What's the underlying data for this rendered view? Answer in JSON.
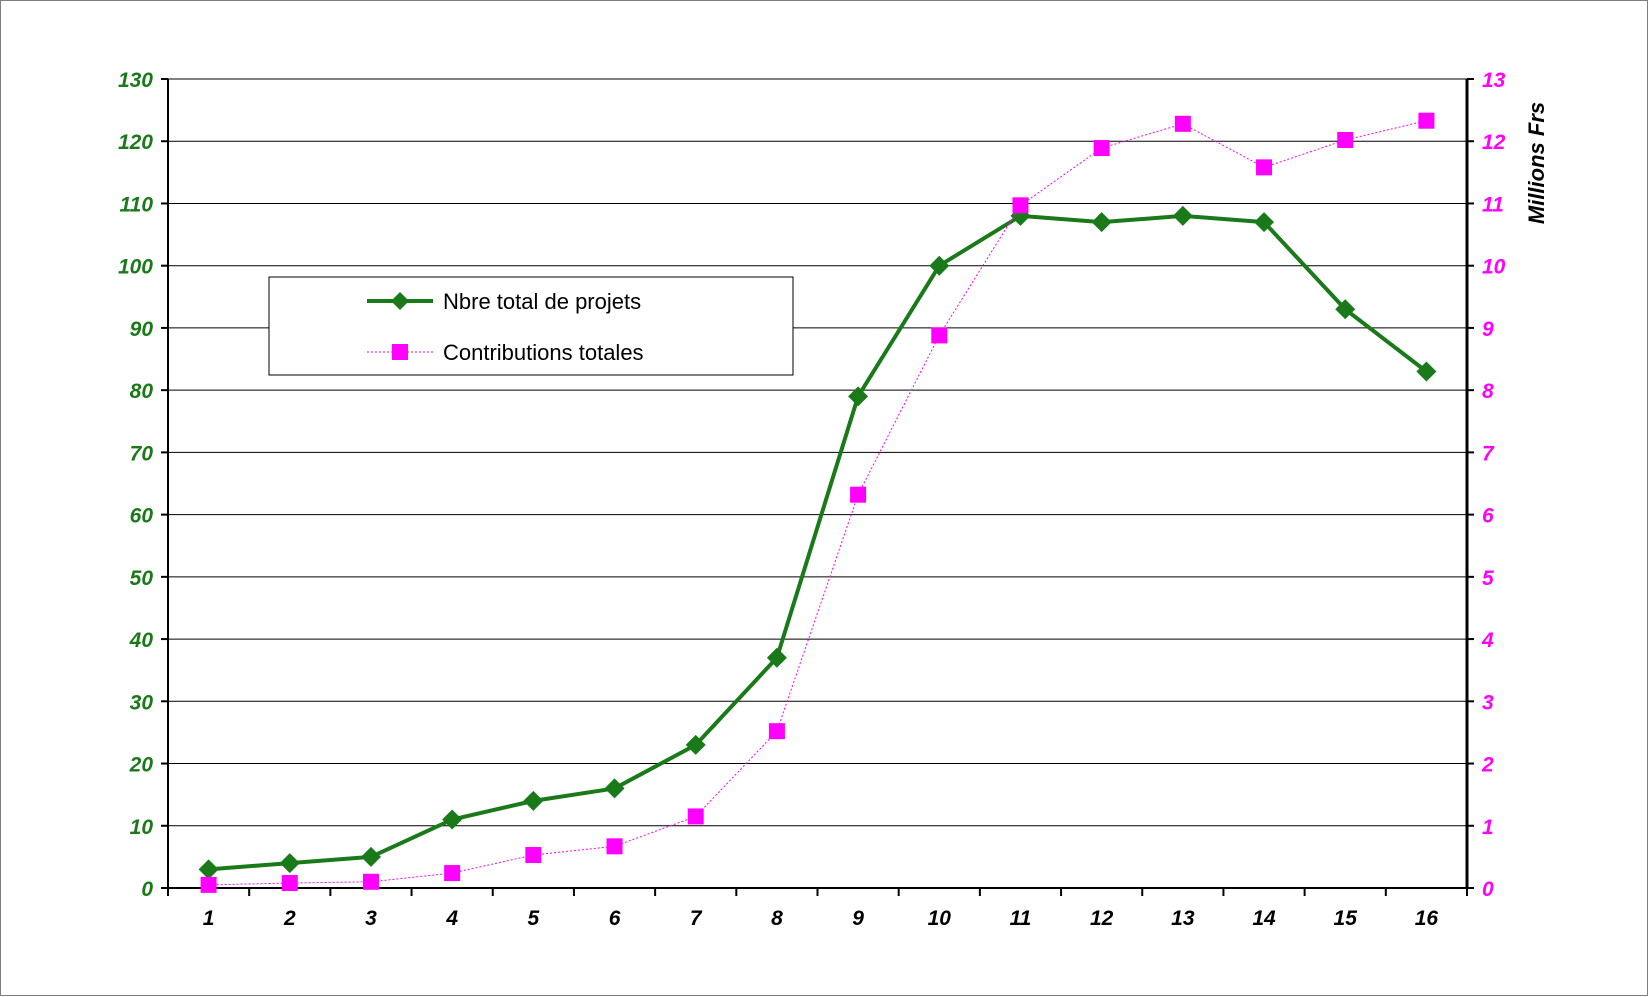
{
  "chart_data": {
    "type": "line",
    "title": "",
    "categories": [
      "1",
      "2",
      "3",
      "4",
      "5",
      "6",
      "7",
      "8",
      "9",
      "10",
      "11",
      "12",
      "13",
      "14",
      "15",
      "16"
    ],
    "series": [
      {
        "name": "Nbre total de projets",
        "axis": "left",
        "color": "#1a7a1a",
        "marker": "diamond",
        "values": [
          3,
          4,
          5,
          11,
          14,
          16,
          23,
          37,
          79,
          100,
          108,
          107,
          108,
          107,
          93,
          83
        ]
      },
      {
        "name": "Contributions totales",
        "axis": "right",
        "color": "#ff00ff",
        "marker": "square",
        "values": [
          0.05,
          0.08,
          0.1,
          0.24,
          0.53,
          0.67,
          1.15,
          2.52,
          6.32,
          8.88,
          10.97,
          11.89,
          12.28,
          11.58,
          12.02,
          12.33
        ]
      }
    ],
    "y_left": {
      "min": 0,
      "max": 130,
      "step": 10,
      "ticks": [
        "0",
        "10",
        "20",
        "30",
        "40",
        "50",
        "60",
        "70",
        "80",
        "90",
        "100",
        "110",
        "120",
        "130"
      ],
      "color": "#1a7a1a",
      "label": ""
    },
    "y_right": {
      "min": 0,
      "max": 13,
      "step": 1,
      "ticks": [
        "0",
        "1",
        "2",
        "3",
        "4",
        "5",
        "6",
        "7",
        "8",
        "9",
        "10",
        "11",
        "12",
        "13"
      ],
      "color": "#ff00ff",
      "label": "Millions Frs"
    },
    "grid": true,
    "legend": "upper-left"
  }
}
